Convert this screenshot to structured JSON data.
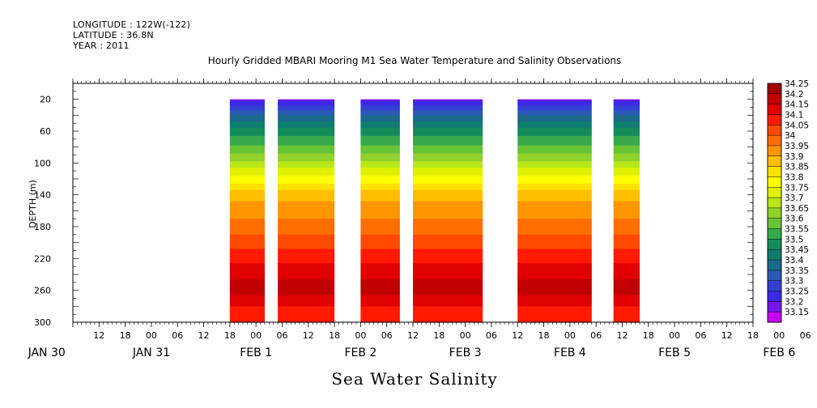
{
  "header": {
    "longitude": "LONGITUDE : 122W(-122)",
    "latitude": "LATITUDE : 36.8N",
    "year": "YEAR : 2011"
  },
  "chart_data": {
    "type": "heatmap",
    "title": "Hourly Gridded MBARI Mooring M1 Sea Water Temperature and Salinity Observations",
    "subtitle": "Sea Water Salinity",
    "ylabel": "DEPTH (m)",
    "xlabel": "",
    "x_hours_from_jan30_00": [
      6,
      162
    ],
    "y_depth_range_m": [
      0,
      300
    ],
    "y_inverted": true,
    "y_ticks": [
      20,
      60,
      100,
      140,
      180,
      220,
      260,
      300
    ],
    "x_hour_ticks": [
      "12",
      "18",
      "00",
      "06",
      "12",
      "18",
      "00",
      "06",
      "12",
      "18",
      "00",
      "06",
      "12",
      "18",
      "00",
      "06",
      "12",
      "18",
      "00",
      "06",
      "12",
      "18",
      "00",
      "06",
      "12",
      "18",
      "00",
      "06",
      "12",
      "18",
      "00",
      "06"
    ],
    "x_hour_ticks_start_hour": 12,
    "x_day_labels": [
      {
        "label": "JAN 30",
        "hour": 0
      },
      {
        "label": "JAN 31",
        "hour": 24
      },
      {
        "label": "FEB  1",
        "hour": 48
      },
      {
        "label": "FEB  2",
        "hour": 72
      },
      {
        "label": "FEB  3",
        "hour": 96
      },
      {
        "label": "FEB  4",
        "hour": 120
      },
      {
        "label": "FEB  5",
        "hour": 144
      },
      {
        "label": "FEB  6",
        "hour": 168
      }
    ],
    "data_segments_hours": [
      [
        42,
        50
      ],
      [
        53,
        66
      ],
      [
        72,
        81
      ],
      [
        84,
        100
      ],
      [
        108,
        125
      ],
      [
        130,
        136
      ]
    ],
    "colorbar": {
      "labels": [
        "34.25",
        "34.2",
        "34.15",
        "34.1",
        "34.05",
        "34",
        "33.95",
        "33.9",
        "33.85",
        "33.8",
        "33.75",
        "33.7",
        "33.65",
        "33.6",
        "33.55",
        "33.5",
        "33.45",
        "33.4",
        "33.35",
        "33.3",
        "33.25",
        "33.2",
        "33.15"
      ],
      "colors": [
        "#a10000",
        "#c00000",
        "#e00000",
        "#ff1a00",
        "#ff4a00",
        "#ff6e00",
        "#ff9600",
        "#ffbe00",
        "#ffe000",
        "#ffff00",
        "#e1f000",
        "#b9e619",
        "#91d22d",
        "#69c337",
        "#37aa4b",
        "#148c5a",
        "#0f7d6e",
        "#1b6b8c",
        "#2a5ab4",
        "#3341d2",
        "#3c28e6",
        "#7814f0",
        "#c800f5"
      ]
    },
    "salinity_profile": [
      {
        "depth": 20,
        "value": 33.22
      },
      {
        "depth": 30,
        "value": 33.32
      },
      {
        "depth": 45,
        "value": 33.43
      },
      {
        "depth": 60,
        "value": 33.52
      },
      {
        "depth": 75,
        "value": 33.59
      },
      {
        "depth": 90,
        "value": 33.66
      },
      {
        "depth": 105,
        "value": 33.74
      },
      {
        "depth": 120,
        "value": 33.82
      },
      {
        "depth": 135,
        "value": 33.9
      },
      {
        "depth": 150,
        "value": 33.96
      },
      {
        "depth": 170,
        "value": 34.0
      },
      {
        "depth": 190,
        "value": 34.05
      },
      {
        "depth": 215,
        "value": 34.12
      },
      {
        "depth": 235,
        "value": 34.17
      },
      {
        "depth": 250,
        "value": 34.21
      },
      {
        "depth": 265,
        "value": 34.2
      },
      {
        "depth": 280,
        "value": 34.15
      },
      {
        "depth": 300,
        "value": 34.14
      }
    ]
  }
}
